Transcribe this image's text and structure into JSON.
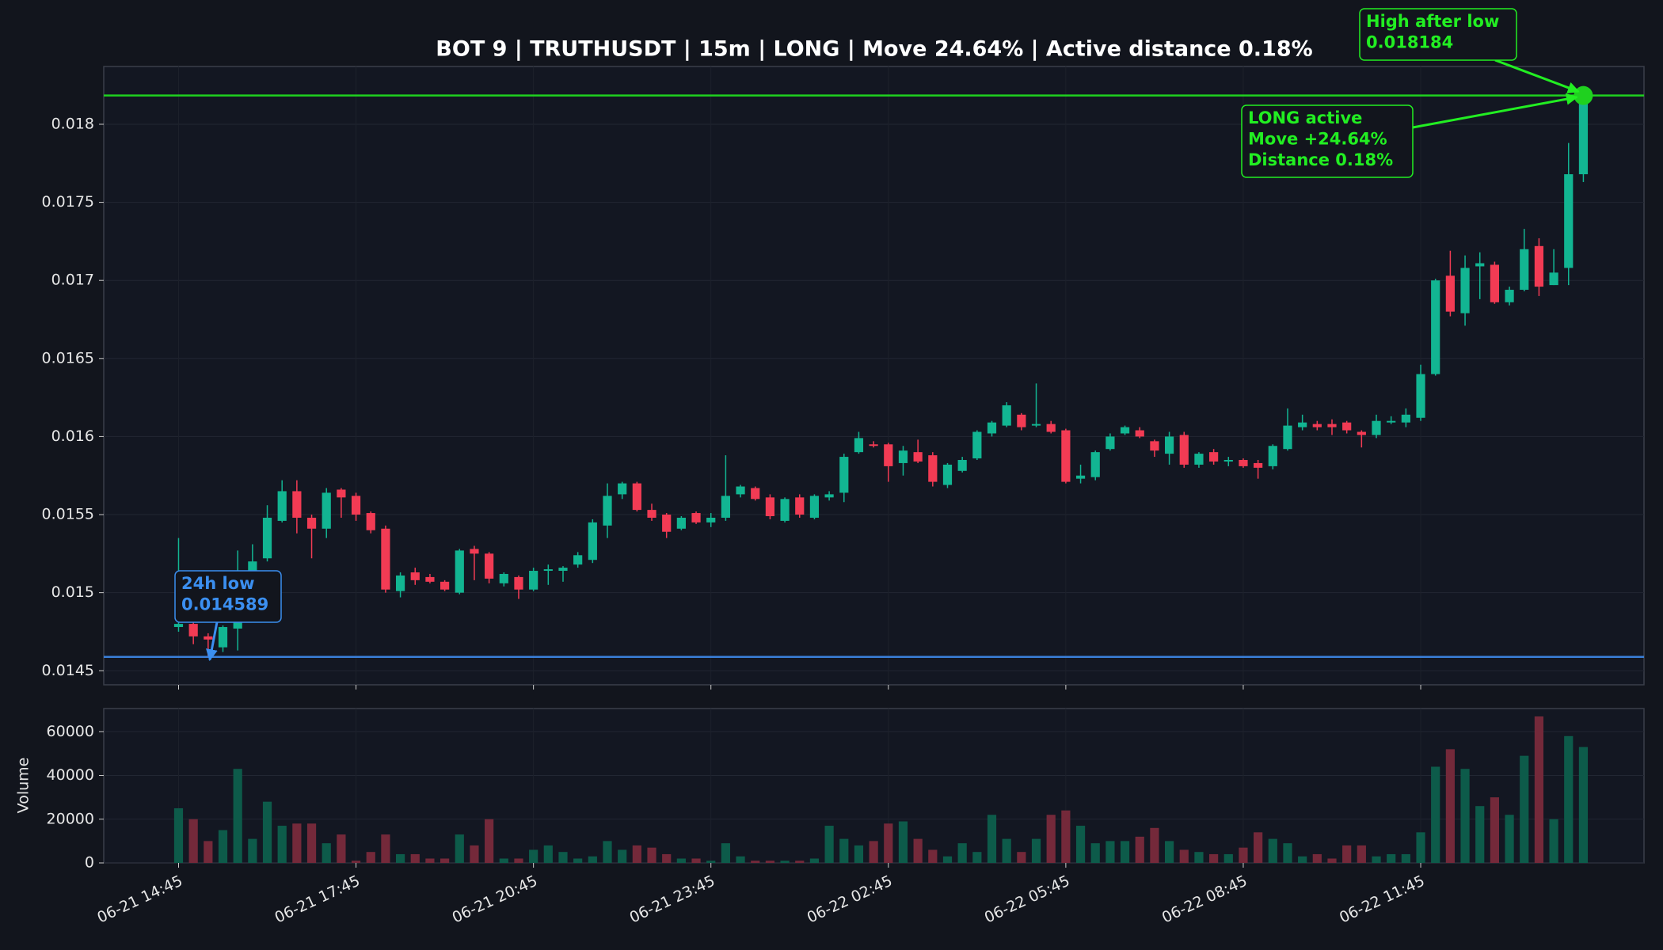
{
  "chart_data": {
    "type": "candlestick",
    "title": "BOT 9 | TRUTHUSDT | 15m | LONG | Move 24.64% | Active distance 0.18%",
    "volume_axis_label": "Volume",
    "categories": [
      "06-21 14:45",
      null,
      null,
      null,
      null,
      null,
      null,
      null,
      null,
      null,
      null,
      null,
      "06-21 17:45",
      null,
      null,
      null,
      null,
      null,
      null,
      null,
      null,
      null,
      null,
      null,
      "06-21 20:45",
      null,
      null,
      null,
      null,
      null,
      null,
      null,
      null,
      null,
      null,
      null,
      "06-21 23:45",
      null,
      null,
      null,
      null,
      null,
      null,
      null,
      null,
      null,
      null,
      null,
      "06-22 02:45",
      null,
      null,
      null,
      null,
      null,
      null,
      null,
      null,
      null,
      null,
      null,
      "06-22 05:45",
      null,
      null,
      null,
      null,
      null,
      null,
      null,
      null,
      null,
      null,
      null,
      "06-22 08:45",
      null,
      null,
      null,
      null,
      null,
      null,
      null,
      null,
      null,
      null,
      null,
      "06-22 11:45",
      null,
      null,
      null,
      null,
      null,
      null,
      null,
      null,
      null,
      null,
      null
    ],
    "open": [
      0.01478,
      0.0148,
      0.01472,
      0.01465,
      0.01477,
      0.0151,
      0.01522,
      0.01546,
      0.01565,
      0.01548,
      0.01541,
      0.01566,
      0.01562,
      0.01551,
      0.01541,
      0.01501,
      0.01513,
      0.0151,
      0.01507,
      0.015,
      0.01528,
      0.01525,
      0.01506,
      0.0151,
      0.01502,
      0.01514,
      0.01514,
      0.01518,
      0.01521,
      0.01543,
      0.01563,
      0.0157,
      0.01553,
      0.0155,
      0.01541,
      0.01551,
      0.01545,
      0.01548,
      0.01563,
      0.01567,
      0.01561,
      0.01546,
      0.01561,
      0.01548,
      0.01561,
      0.01564,
      0.0159,
      0.01595,
      0.01595,
      0.01583,
      0.0159,
      0.01588,
      0.01569,
      0.01578,
      0.01586,
      0.01602,
      0.01607,
      0.01614,
      0.01607,
      0.01608,
      0.01604,
      0.01573,
      0.01574,
      0.01592,
      0.01602,
      0.01604,
      0.01597,
      0.01589,
      0.01601,
      0.01582,
      0.0159,
      0.01584,
      0.01585,
      0.01583,
      0.01581,
      0.01592,
      0.01606,
      0.01608,
      0.01608,
      0.01609,
      0.01603,
      0.01601,
      0.01609,
      0.01609,
      0.01612,
      0.0164,
      0.01703,
      0.01679,
      0.01709,
      0.0171,
      0.01686,
      0.01694,
      0.01722,
      0.01697,
      0.01708,
      0.01768
    ],
    "high": [
      0.01535,
      0.01483,
      0.01474,
      0.01479,
      0.01527,
      0.01531,
      0.01556,
      0.01572,
      0.01572,
      0.0155,
      0.01567,
      0.01567,
      0.01564,
      0.01552,
      0.01543,
      0.01513,
      0.01516,
      0.01512,
      0.01508,
      0.01528,
      0.0153,
      0.01526,
      0.01513,
      0.01511,
      0.01516,
      0.01518,
      0.01517,
      0.01526,
      0.01547,
      0.0157,
      0.01571,
      0.01571,
      0.01557,
      0.01551,
      0.01549,
      0.01552,
      0.01551,
      0.01588,
      0.01569,
      0.01568,
      0.01563,
      0.01561,
      0.01563,
      0.01563,
      0.01565,
      0.01589,
      0.01603,
      0.01597,
      0.01596,
      0.01594,
      0.01598,
      0.0159,
      0.01583,
      0.01587,
      0.01604,
      0.0161,
      0.01622,
      0.01615,
      0.01634,
      0.0161,
      0.01605,
      0.01582,
      0.01591,
      0.01602,
      0.01607,
      0.01606,
      0.01598,
      0.01603,
      0.01603,
      0.0159,
      0.01592,
      0.01587,
      0.01586,
      0.01585,
      0.01595,
      0.01618,
      0.01614,
      0.0161,
      0.01611,
      0.0161,
      0.01604,
      0.01614,
      0.01613,
      0.01618,
      0.01646,
      0.01701,
      0.01719,
      0.01716,
      0.01718,
      0.01712,
      0.01696,
      0.01733,
      0.01727,
      0.0172,
      0.01788,
      0.018184
    ],
    "low": [
      0.01475,
      0.01467,
      0.014589,
      0.01462,
      0.01463,
      0.01505,
      0.0152,
      0.01545,
      0.01538,
      0.01522,
      0.01535,
      0.01548,
      0.01546,
      0.01538,
      0.015,
      0.01497,
      0.01505,
      0.01506,
      0.01501,
      0.01499,
      0.01508,
      0.01506,
      0.01504,
      0.01496,
      0.01501,
      0.01505,
      0.01507,
      0.01516,
      0.01519,
      0.01535,
      0.0156,
      0.01552,
      0.01546,
      0.01535,
      0.0154,
      0.01544,
      0.01542,
      0.01546,
      0.01561,
      0.01559,
      0.01547,
      0.01545,
      0.01548,
      0.01547,
      0.01559,
      0.01558,
      0.01589,
      0.01593,
      0.01571,
      0.01575,
      0.01583,
      0.01568,
      0.01567,
      0.01577,
      0.01585,
      0.016,
      0.01606,
      0.01604,
      0.01606,
      0.01602,
      0.0157,
      0.0157,
      0.01572,
      0.01591,
      0.01601,
      0.01599,
      0.01587,
      0.01582,
      0.0158,
      0.0158,
      0.01582,
      0.01581,
      0.0158,
      0.01573,
      0.01579,
      0.01591,
      0.01604,
      0.01604,
      0.01601,
      0.01602,
      0.01593,
      0.01599,
      0.01608,
      0.01606,
      0.0161,
      0.01639,
      0.01677,
      0.01671,
      0.01688,
      0.01685,
      0.01684,
      0.01693,
      0.0169,
      0.01697,
      0.01697,
      0.01763
    ],
    "close": [
      0.0148,
      0.01472,
      0.0147,
      0.01478,
      0.01481,
      0.0152,
      0.01548,
      0.01565,
      0.01548,
      0.01541,
      0.01564,
      0.01561,
      0.0155,
      0.0154,
      0.01502,
      0.01511,
      0.01508,
      0.01507,
      0.01502,
      0.01527,
      0.01525,
      0.01509,
      0.01512,
      0.01502,
      0.01514,
      0.01515,
      0.01516,
      0.01524,
      0.01545,
      0.01562,
      0.0157,
      0.01553,
      0.01548,
      0.01539,
      0.01548,
      0.01545,
      0.01548,
      0.01562,
      0.01568,
      0.0156,
      0.01549,
      0.0156,
      0.0155,
      0.01562,
      0.01563,
      0.01587,
      0.01599,
      0.01594,
      0.01581,
      0.01591,
      0.01584,
      0.01571,
      0.01582,
      0.01585,
      0.01603,
      0.01609,
      0.0162,
      0.01606,
      0.01608,
      0.01603,
      0.01571,
      0.01575,
      0.0159,
      0.016,
      0.01606,
      0.016,
      0.01591,
      0.016,
      0.01582,
      0.01589,
      0.01584,
      0.01585,
      0.01581,
      0.0158,
      0.01594,
      0.01607,
      0.01609,
      0.01606,
      0.01606,
      0.01604,
      0.01601,
      0.0161,
      0.0161,
      0.01614,
      0.0164,
      0.017,
      0.0168,
      0.01708,
      0.01711,
      0.01686,
      0.01694,
      0.0172,
      0.01696,
      0.01705,
      0.01768,
      0.01815
    ],
    "volume": [
      25000,
      20000,
      10000,
      15000,
      43000,
      11000,
      28000,
      17000,
      18000,
      18000,
      9000,
      13000,
      1000,
      5000,
      13000,
      4000,
      4000,
      2000,
      2000,
      13000,
      8000,
      20000,
      2000,
      2000,
      6000,
      8000,
      5000,
      2000,
      3000,
      10000,
      6000,
      8000,
      7000,
      4000,
      2000,
      2000,
      1000,
      9000,
      3000,
      1000,
      1000,
      1000,
      1000,
      2000,
      17000,
      11000,
      8000,
      10000,
      18000,
      19000,
      11000,
      6000,
      3000,
      9000,
      5000,
      22000,
      11000,
      5000,
      11000,
      22000,
      24000,
      17000,
      9000,
      10000,
      10000,
      12000,
      16000,
      10000,
      6000,
      5000,
      4000,
      4000,
      7000,
      14000,
      11000,
      9000,
      3000,
      4000,
      2000,
      8000,
      8000,
      3000,
      4000,
      4000,
      14000,
      44000,
      52000,
      43000,
      26000,
      30000,
      22000,
      49000,
      67000,
      20000,
      58000,
      53000
    ],
    "up_color": "#12b592",
    "down_color": "#f23b54",
    "volume_up_color": "#0d5b4a",
    "volume_down_color": "#74293a",
    "ylim": [
      0.01441,
      0.01837
    ],
    "yticks": [
      0.0145,
      0.015,
      0.0155,
      0.016,
      0.0165,
      0.017,
      0.0175,
      0.018
    ],
    "volume_ylim": [
      0,
      70600
    ],
    "volume_yticks": [
      0,
      20000,
      40000,
      60000
    ],
    "grid": true,
    "hlines": [
      {
        "value": 0.018184,
        "color": "#1fd11f"
      },
      {
        "value": 0.014589,
        "color": "#3a7fd9"
      }
    ],
    "annotations": [
      {
        "lines": [
          "24h low",
          "0.014589"
        ],
        "color": "#3b8ff0"
      },
      {
        "lines": [
          "High after low",
          "0.018184"
        ],
        "color": "#22ee22"
      },
      {
        "lines": [
          "LONG active",
          "Move +24.64%",
          "Distance 0.18%"
        ],
        "color": "#22ee22"
      }
    ]
  }
}
